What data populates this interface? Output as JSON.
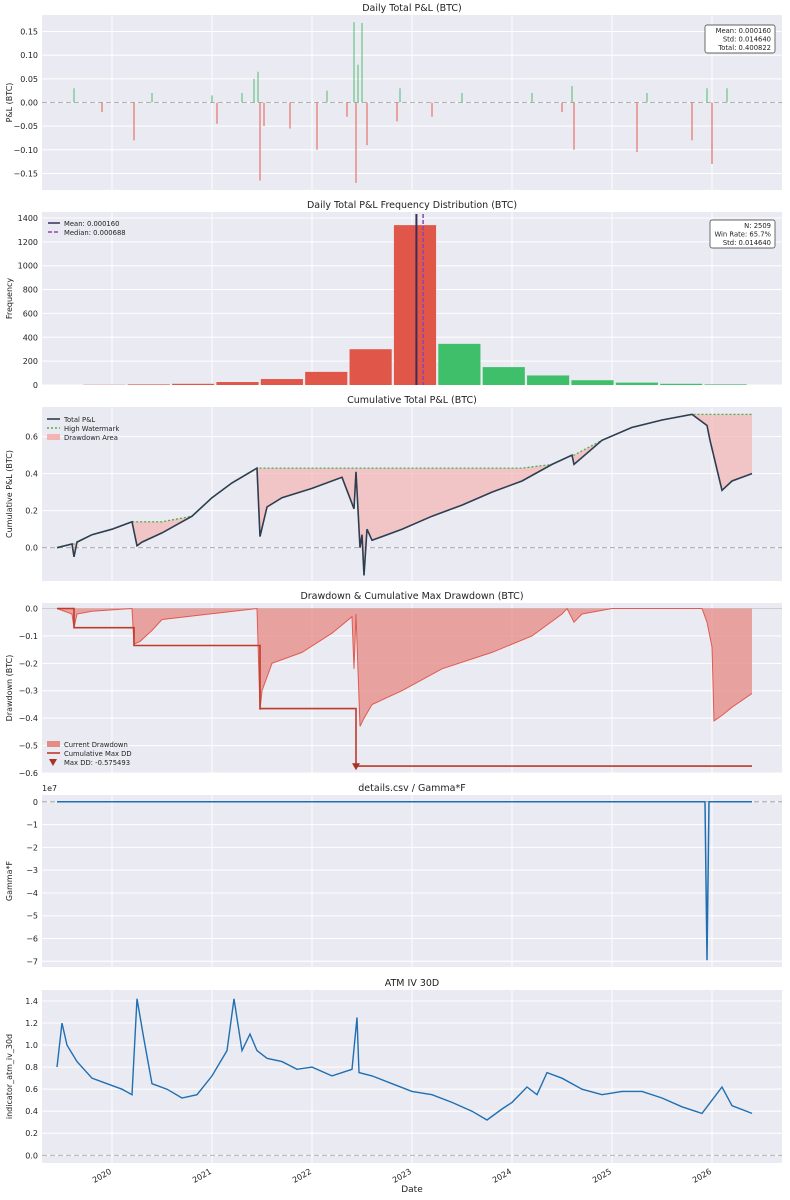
{
  "figure": {
    "xlabel": "Date"
  },
  "chart_data": [
    {
      "id": "pnl",
      "type": "bar",
      "title": "Daily Total P&L (BTC)",
      "xlabel": "",
      "ylabel": "P&L (BTC)",
      "ylim": [
        -0.185,
        0.185
      ],
      "yticks": [
        0.15,
        0.1,
        0.05,
        0.0,
        -0.05,
        -0.1,
        -0.15
      ],
      "ytick_labels": [
        "0.15",
        "0.10",
        "0.05",
        "0.00",
        "−0.05",
        "−0.10",
        "−0.15"
      ],
      "colors": {
        "positive": "#4fbd72",
        "negative": "#e55a4f"
      },
      "stats_box": [
        "Mean: 0.000160",
        "Std: 0.014640",
        "Total: 0.400822"
      ],
      "spikes": [
        {
          "x": 2019.62,
          "y": 0.03
        },
        {
          "x": 2019.9,
          "y": -0.02
        },
        {
          "x": 2020.22,
          "y": -0.08
        },
        {
          "x": 2020.4,
          "y": 0.02
        },
        {
          "x": 2021.0,
          "y": 0.015
        },
        {
          "x": 2021.05,
          "y": -0.045
        },
        {
          "x": 2021.3,
          "y": 0.02
        },
        {
          "x": 2021.42,
          "y": 0.05
        },
        {
          "x": 2021.46,
          "y": 0.065
        },
        {
          "x": 2021.48,
          "y": -0.165
        },
        {
          "x": 2021.52,
          "y": -0.05
        },
        {
          "x": 2021.78,
          "y": -0.055
        },
        {
          "x": 2022.05,
          "y": -0.1
        },
        {
          "x": 2022.15,
          "y": 0.025
        },
        {
          "x": 2022.35,
          "y": -0.03
        },
        {
          "x": 2022.42,
          "y": 0.17
        },
        {
          "x": 2022.44,
          "y": -0.17
        },
        {
          "x": 2022.46,
          "y": 0.08
        },
        {
          "x": 2022.5,
          "y": 0.168
        },
        {
          "x": 2022.55,
          "y": -0.09
        },
        {
          "x": 2022.85,
          "y": -0.04
        },
        {
          "x": 2022.88,
          "y": 0.03
        },
        {
          "x": 2023.2,
          "y": -0.03
        },
        {
          "x": 2023.5,
          "y": 0.02
        },
        {
          "x": 2024.2,
          "y": 0.02
        },
        {
          "x": 2024.5,
          "y": -0.02
        },
        {
          "x": 2024.6,
          "y": 0.035
        },
        {
          "x": 2024.62,
          "y": -0.1
        },
        {
          "x": 2025.25,
          "y": -0.105
        },
        {
          "x": 2025.35,
          "y": 0.02
        },
        {
          "x": 2025.8,
          "y": -0.08
        },
        {
          "x": 2025.95,
          "y": 0.03
        },
        {
          "x": 2026.0,
          "y": -0.13
        },
        {
          "x": 2026.15,
          "y": 0.03
        }
      ]
    },
    {
      "id": "hist",
      "type": "bar",
      "title": "Daily Total P&L Frequency Distribution (BTC)",
      "xlabel": "",
      "ylabel": "Frequency",
      "ylim": [
        0,
        1450
      ],
      "yticks": [
        0,
        200,
        400,
        600,
        800,
        1000,
        1200,
        1400
      ],
      "ytick_labels": [
        "0",
        "200",
        "400",
        "600",
        "800",
        "1000",
        "1200",
        "1400"
      ],
      "legend": [
        "Mean: 0.000160",
        "Median: 0.000688"
      ],
      "legend_colors": [
        "#3b2c5a",
        "#8e44ad"
      ],
      "stats_box": [
        "N: 2509",
        "Win Rate: 65.7%",
        "Std: 0.014640"
      ],
      "bins": [
        {
          "x": -0.035,
          "count": 2,
          "sign": "neg"
        },
        {
          "x": -0.03,
          "count": 5,
          "sign": "neg"
        },
        {
          "x": -0.025,
          "count": 10,
          "sign": "neg"
        },
        {
          "x": -0.02,
          "count": 25,
          "sign": "neg"
        },
        {
          "x": -0.015,
          "count": 50,
          "sign": "neg"
        },
        {
          "x": -0.01,
          "count": 110,
          "sign": "neg"
        },
        {
          "x": -0.005,
          "count": 300,
          "sign": "neg"
        },
        {
          "x": 0.0,
          "count": 1340,
          "sign": "neg"
        },
        {
          "x": 0.005,
          "count": 345,
          "sign": "pos"
        },
        {
          "x": 0.01,
          "count": 150,
          "sign": "pos"
        },
        {
          "x": 0.015,
          "count": 80,
          "sign": "pos"
        },
        {
          "x": 0.02,
          "count": 40,
          "sign": "pos"
        },
        {
          "x": 0.025,
          "count": 20,
          "sign": "pos"
        },
        {
          "x": 0.03,
          "count": 10,
          "sign": "pos"
        },
        {
          "x": 0.035,
          "count": 5,
          "sign": "pos"
        }
      ],
      "mean_x": 0.00016,
      "median_x": 0.000688
    },
    {
      "id": "cum",
      "type": "line",
      "title": "Cumulative Total P&L (BTC)",
      "xlabel": "",
      "ylabel": "Cumulative P&L (BTC)",
      "ylim": [
        -0.18,
        0.76
      ],
      "yticks": [
        0.6,
        0.4,
        0.2,
        0.0
      ],
      "ytick_labels": [
        "0.6",
        "0.4",
        "0.2",
        "0.0"
      ],
      "legend": [
        "Total P&L",
        "High Watermark",
        "Drawdown Area"
      ],
      "colors": {
        "line": "#2c3e50",
        "watermark": "#4caf50",
        "area": "#f4b4b4"
      },
      "series": {
        "x": [
          2019.45,
          2019.6,
          2019.62,
          2019.65,
          2019.8,
          2020.0,
          2020.2,
          2020.25,
          2020.3,
          2020.5,
          2020.8,
          2021.0,
          2021.2,
          2021.45,
          2021.48,
          2021.55,
          2021.7,
          2022.0,
          2022.3,
          2022.42,
          2022.44,
          2022.48,
          2022.5,
          2022.52,
          2022.55,
          2022.6,
          2022.9,
          2023.2,
          2023.5,
          2023.8,
          2024.1,
          2024.4,
          2024.6,
          2024.62,
          2024.9,
          2025.2,
          2025.5,
          2025.8,
          2025.95,
          2025.98,
          2026.1,
          2026.2,
          2026.4
        ],
        "y": [
          0.0,
          0.02,
          -0.05,
          0.03,
          0.07,
          0.1,
          0.14,
          0.01,
          0.03,
          0.08,
          0.17,
          0.27,
          0.35,
          0.43,
          0.06,
          0.22,
          0.27,
          0.32,
          0.38,
          0.21,
          0.41,
          0.0,
          0.07,
          -0.15,
          0.1,
          0.04,
          0.1,
          0.17,
          0.23,
          0.3,
          0.36,
          0.45,
          0.5,
          0.45,
          0.58,
          0.65,
          0.69,
          0.72,
          0.66,
          0.58,
          0.31,
          0.36,
          0.4
        ]
      }
    },
    {
      "id": "dd",
      "type": "area",
      "title": "Drawdown & Cumulative Max Drawdown (BTC)",
      "xlabel": "",
      "ylabel": "Drawdown (BTC)",
      "ylim": [
        -0.6,
        0.02
      ],
      "yticks": [
        0.0,
        -0.1,
        -0.2,
        -0.3,
        -0.4,
        -0.5,
        -0.6
      ],
      "ytick_labels": [
        "0.0",
        "−0.1",
        "−0.2",
        "−0.3",
        "−0.4",
        "−0.5",
        "−0.6"
      ],
      "legend": [
        "Current Drawdown",
        "Cumulative Max DD",
        "Max DD: -0.575493"
      ],
      "colors": {
        "area": "#e58a84",
        "line": "#c0392b"
      },
      "drawdown": {
        "x": [
          2019.45,
          2019.6,
          2019.62,
          2019.65,
          2019.8,
          2020.2,
          2020.22,
          2020.28,
          2020.4,
          2020.5,
          2021.45,
          2021.48,
          2021.5,
          2021.6,
          2021.9,
          2022.2,
          2022.4,
          2022.42,
          2022.44,
          2022.48,
          2022.52,
          2022.6,
          2022.9,
          2023.3,
          2023.8,
          2024.2,
          2024.5,
          2024.55,
          2024.62,
          2024.7,
          2025.0,
          2025.5,
          2025.9,
          2025.95,
          2026.0,
          2026.02,
          2026.1,
          2026.2,
          2026.4
        ],
        "y": [
          0.0,
          -0.02,
          -0.07,
          -0.02,
          -0.01,
          0.0,
          -0.13,
          -0.12,
          -0.08,
          -0.04,
          0.0,
          -0.37,
          -0.3,
          -0.2,
          -0.16,
          -0.09,
          -0.03,
          -0.22,
          -0.02,
          -0.43,
          -0.4,
          -0.35,
          -0.3,
          -0.22,
          -0.16,
          -0.1,
          -0.02,
          0.0,
          -0.05,
          -0.02,
          0.0,
          0.0,
          0.0,
          -0.05,
          -0.14,
          -0.41,
          -0.39,
          -0.36,
          -0.31
        ]
      },
      "cum_max_dd": {
        "x": [
          2019.45,
          2019.62,
          2019.62,
          2020.22,
          2020.22,
          2021.48,
          2021.48,
          2022.44,
          2022.44,
          2026.4
        ],
        "y": [
          0.0,
          0.0,
          -0.07,
          -0.07,
          -0.135,
          -0.135,
          -0.365,
          -0.365,
          -0.575,
          -0.575
        ]
      },
      "max_dd": {
        "x": 2022.44,
        "y": -0.575493
      }
    },
    {
      "id": "gamma",
      "type": "line",
      "title": "details.csv / Gamma*F",
      "xlabel": "",
      "ylabel": "Gamma*F",
      "scale_label": "1e7",
      "ylim": [
        -7.25,
        0.3
      ],
      "yticks": [
        0,
        -1,
        -2,
        -3,
        -4,
        -5,
        -6,
        -7
      ],
      "ytick_labels": [
        "0",
        "−1",
        "−2",
        "−3",
        "−4",
        "−5",
        "−6",
        "−7"
      ],
      "colors": {
        "line": "#1f6fb2"
      },
      "series": {
        "x": [
          2019.45,
          2025.93,
          2025.95,
          2025.97,
          2026.4
        ],
        "y": [
          0,
          0,
          -6.95,
          0,
          0
        ]
      }
    },
    {
      "id": "iv",
      "type": "line",
      "title": "ATM IV 30D",
      "xlabel": "",
      "ylabel": "indicator_atm_iv_30d",
      "ylim": [
        -0.07,
        1.5
      ],
      "yticks": [
        0.0,
        0.2,
        0.4,
        0.6,
        0.8,
        1.0,
        1.2,
        1.4
      ],
      "ytick_labels": [
        "0.0",
        "0.2",
        "0.4",
        "0.6",
        "0.8",
        "1.0",
        "1.2",
        "1.4"
      ],
      "colors": {
        "line": "#1f6fb2"
      },
      "xlim": [
        2019.3,
        2026.7
      ],
      "xticks": [
        2020,
        2021,
        2022,
        2023,
        2024,
        2025,
        2026
      ],
      "xtick_labels": [
        "2020",
        "2021",
        "2022",
        "2023",
        "2024",
        "2025",
        "2026"
      ],
      "series": {
        "x": [
          2019.45,
          2019.5,
          2019.55,
          2019.65,
          2019.8,
          2019.95,
          2020.1,
          2020.2,
          2020.25,
          2020.32,
          2020.4,
          2020.55,
          2020.7,
          2020.85,
          2021.0,
          2021.15,
          2021.22,
          2021.3,
          2021.38,
          2021.45,
          2021.55,
          2021.7,
          2021.85,
          2022.0,
          2022.2,
          2022.4,
          2022.45,
          2022.47,
          2022.6,
          2022.8,
          2023.0,
          2023.2,
          2023.4,
          2023.6,
          2023.75,
          2023.9,
          2024.0,
          2024.15,
          2024.25,
          2024.35,
          2024.5,
          2024.7,
          2024.9,
          2025.1,
          2025.3,
          2025.5,
          2025.7,
          2025.9,
          2026.0,
          2026.1,
          2026.2,
          2026.4
        ],
        "y": [
          0.8,
          1.2,
          1.0,
          0.85,
          0.7,
          0.65,
          0.6,
          0.55,
          1.42,
          1.05,
          0.65,
          0.6,
          0.52,
          0.55,
          0.72,
          0.95,
          1.42,
          0.95,
          1.1,
          0.95,
          0.88,
          0.85,
          0.78,
          0.8,
          0.72,
          0.78,
          1.25,
          0.75,
          0.72,
          0.65,
          0.58,
          0.55,
          0.48,
          0.4,
          0.32,
          0.42,
          0.48,
          0.62,
          0.55,
          0.75,
          0.7,
          0.6,
          0.55,
          0.58,
          0.58,
          0.52,
          0.44,
          0.38,
          0.5,
          0.62,
          0.45,
          0.38
        ]
      }
    }
  ]
}
